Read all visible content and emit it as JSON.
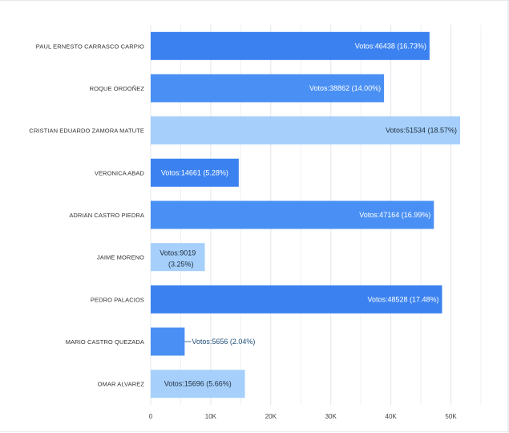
{
  "chart_data": {
    "type": "bar",
    "orientation": "horizontal",
    "categories": [
      "PAUL ERNESTO CARRASCO CARPIO",
      "ROQUE ORDOÑEZ",
      "CRISTIAN EDUARDO ZAMORA MATUTE",
      "VERONICA ABAD",
      "ADRIAN CASTRO PIEDRA",
      "JAIME MORENO",
      "PEDRO PALACIOS",
      "MARIO CASTRO QUEZADA",
      "OMAR ALVAREZ"
    ],
    "values": [
      46438,
      38862,
      51534,
      14661,
      47164,
      9019,
      48528,
      5656,
      15696
    ],
    "data_labels": [
      "Votos:46438 (16.73%)",
      "Votos:38862 (14.00%)",
      "Votos:51534 (18.57%)",
      "Votos:14661 (5.28%)",
      "Votos:47164 (16.99%)",
      "Votos:9019 (3.25%)",
      "Votos:48528 (17.48%)",
      "Votos:5656 (2.04%)",
      "Votos:15696 (5.66%)"
    ],
    "bar_colors": [
      "#3b82f0",
      "#4a90f4",
      "#a6d0fb",
      "#3b82f0",
      "#4a90f4",
      "#a6d0fb",
      "#3b82f0",
      "#4a90f4",
      "#a6d0fb"
    ],
    "label_colors": [
      "#ffffff",
      "#ffffff",
      "#1f2d3d",
      "#ffffff",
      "#ffffff",
      "#1f2d3d",
      "#ffffff",
      "#1f4d7a",
      "#1f2d3d"
    ],
    "xticks": [
      0,
      10000,
      20000,
      30000,
      40000,
      50000
    ],
    "xtick_labels": [
      "0",
      "10K",
      "20K",
      "30K",
      "40K",
      "50K"
    ],
    "xlim": [
      0,
      55000
    ],
    "grid": true,
    "title": "",
    "xlabel": "",
    "ylabel": ""
  }
}
